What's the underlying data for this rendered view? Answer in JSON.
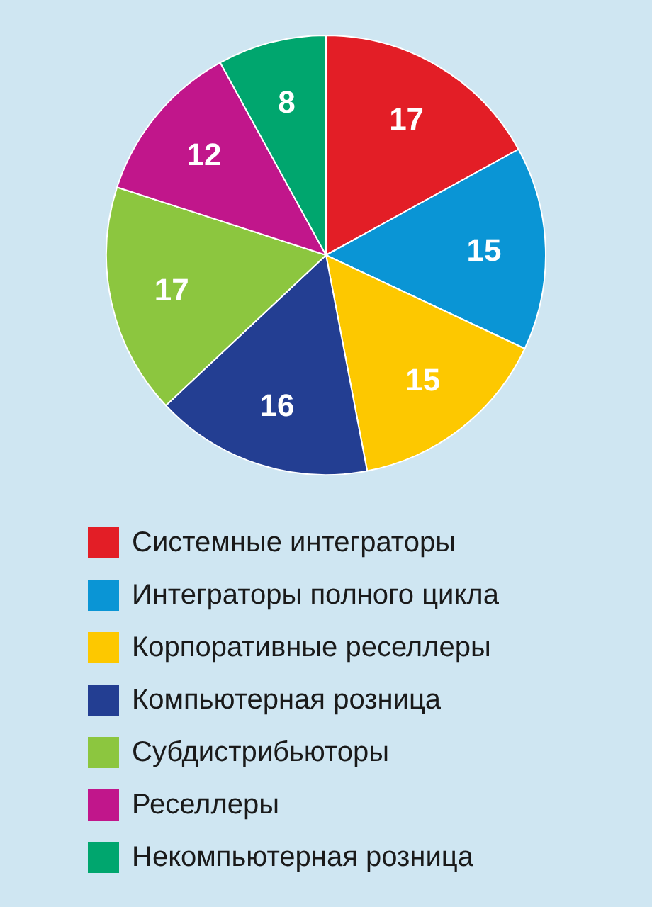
{
  "chart_data": {
    "type": "pie",
    "categories": [
      "Системные интеграторы",
      "Интеграторы полного цикла",
      "Корпоративные реселлеры",
      "Компьютерная розница",
      "Субдистрибьюторы",
      "Реселлеры",
      "Некомпьютерная розница"
    ],
    "values": [
      17,
      15,
      15,
      16,
      17,
      12,
      8
    ],
    "colors": [
      "#e31e26",
      "#0a95d5",
      "#fdc800",
      "#233e92",
      "#8cc63f",
      "#c1168b",
      "#00a66e"
    ],
    "data_labels": true,
    "legend": "bottom"
  }
}
